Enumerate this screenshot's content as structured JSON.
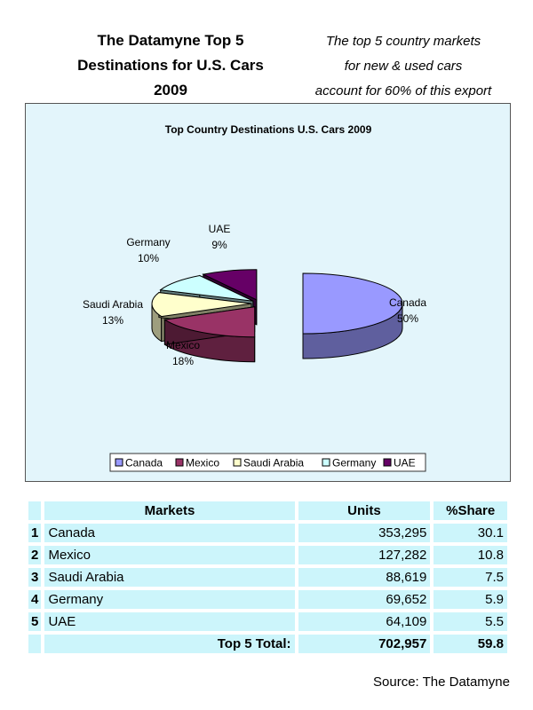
{
  "header": {
    "title_lines": [
      "The Datamyne Top 5",
      "Destinations for U.S. Cars",
      "2009"
    ],
    "note_lines": [
      "The top 5 country markets",
      "for new & used cars",
      "account for 60% of this export"
    ]
  },
  "chart_data": {
    "type": "pie",
    "title": "Top Country Destinations U.S. Cars 2009",
    "categories": [
      "Canada",
      "Mexico",
      "Saudi Arabia",
      "Germany",
      "UAE"
    ],
    "values": [
      50,
      18,
      13,
      10,
      9
    ],
    "value_labels": [
      "50%",
      "18%",
      "13%",
      "10%",
      "9%"
    ],
    "unit": "%",
    "colors": [
      "#9999ff",
      "#993366",
      "#ffffcc",
      "#ccffff",
      "#660066"
    ],
    "exploded": true,
    "legend_position": "bottom"
  },
  "table": {
    "headers": {
      "markets": "Markets",
      "units": "Units",
      "share": "%Share"
    },
    "rows": [
      {
        "rank": "1",
        "market": "Canada",
        "units": "353,295",
        "share": "30.1"
      },
      {
        "rank": "2",
        "market": "Mexico",
        "units": "127,282",
        "share": "10.8"
      },
      {
        "rank": "3",
        "market": "Saudi Arabia",
        "units": "88,619",
        "share": "7.5"
      },
      {
        "rank": "4",
        "market": "Germany",
        "units": "69,652",
        "share": "5.9"
      },
      {
        "rank": "5",
        "market": "UAE",
        "units": "64,109",
        "share": "5.5"
      }
    ],
    "total": {
      "label": "Top 5 Total:",
      "units": "702,957",
      "share": "59.8"
    }
  },
  "source": "Source: The Datamyne"
}
